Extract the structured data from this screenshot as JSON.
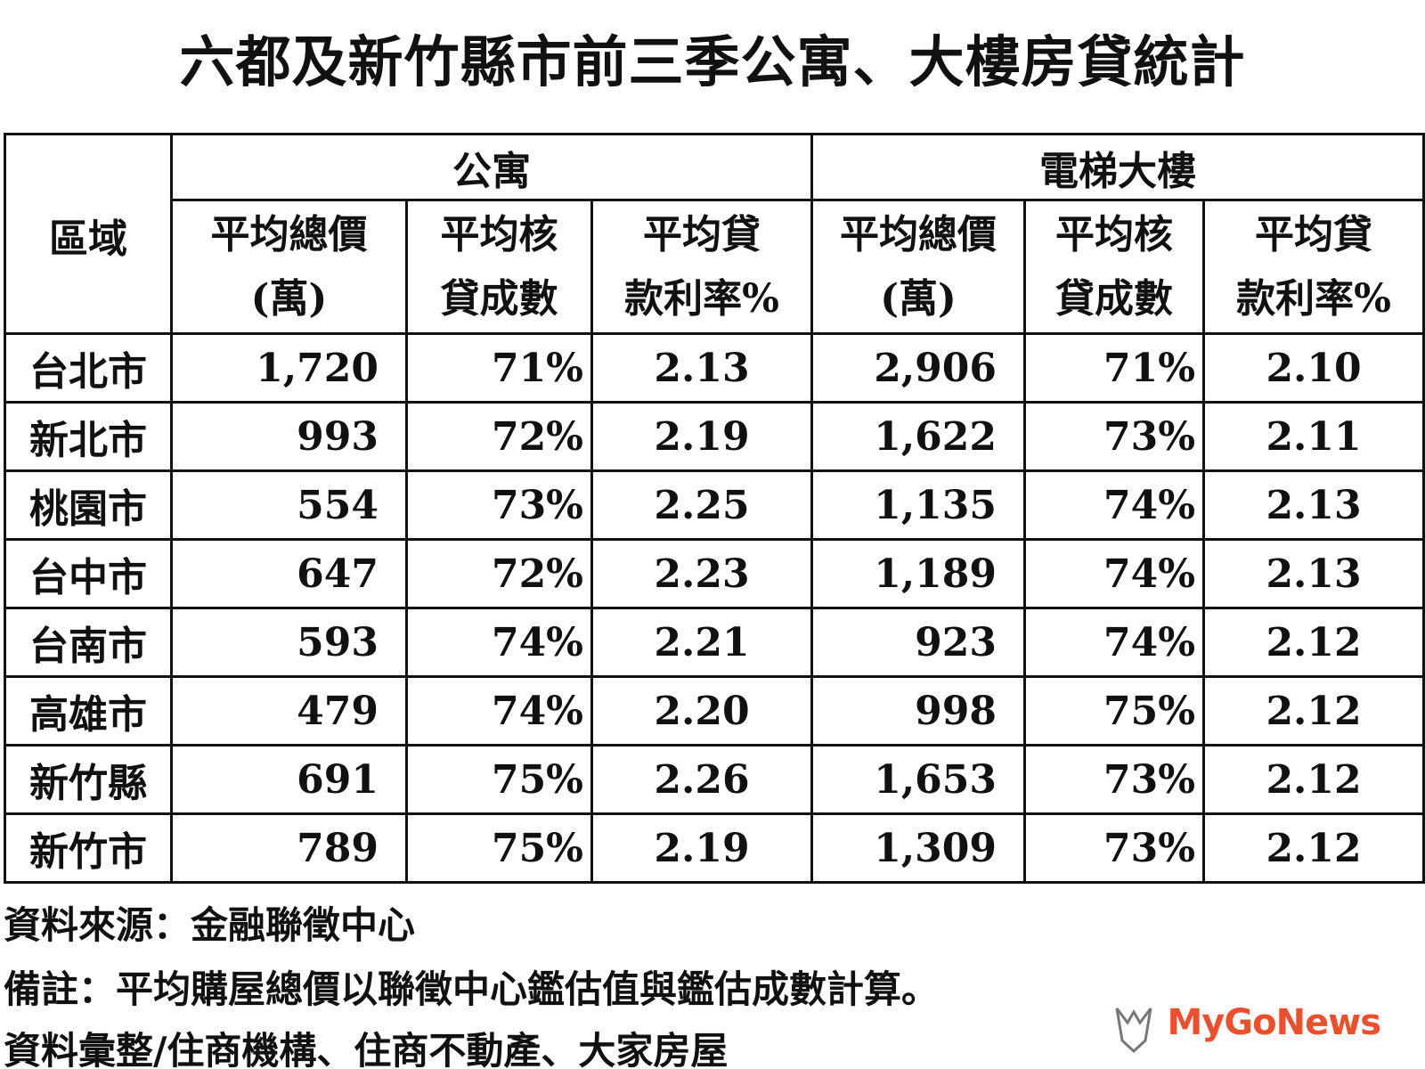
{
  "title": "六都及新竹縣市前三季公寓、大樓房貸統計",
  "table": {
    "region_header": "區域",
    "group_headers": [
      "公寓",
      "電梯大樓"
    ],
    "columns": [
      [
        "平均總價",
        "(萬)"
      ],
      [
        "平均核",
        "貸成數"
      ],
      [
        "平均貸",
        "款利率%"
      ],
      [
        "平均總價",
        "(萬)"
      ],
      [
        "平均核",
        "貸成數"
      ],
      [
        "平均貸",
        "款利率%"
      ]
    ],
    "rows": [
      [
        "台北市",
        "1,720",
        "71%",
        "2.13",
        "2,906",
        "71%",
        "2.10"
      ],
      [
        "新北市",
        "993",
        "72%",
        "2.19",
        "1,622",
        "73%",
        "2.11"
      ],
      [
        "桃園市",
        "554",
        "73%",
        "2.25",
        "1,135",
        "74%",
        "2.13"
      ],
      [
        "台中市",
        "647",
        "72%",
        "2.23",
        "1,189",
        "74%",
        "2.13"
      ],
      [
        "台南市",
        "593",
        "74%",
        "2.21",
        "923",
        "74%",
        "2.12"
      ],
      [
        "高雄市",
        "479",
        "74%",
        "2.20",
        "998",
        "75%",
        "2.12"
      ],
      [
        "新竹縣",
        "691",
        "75%",
        "2.26",
        "1,653",
        "73%",
        "2.12"
      ],
      [
        "新竹市",
        "789",
        "75%",
        "2.19",
        "1,309",
        "73%",
        "2.12"
      ]
    ]
  },
  "footer": [
    "資料來源：金融聯徵中心",
    "備註：平均購屋總價以聯徵中心鑑估值與鑑估成數計算。",
    "資料彙整/住商機構、住商不動產、大家房屋"
  ],
  "logo": "MyGoNews"
}
